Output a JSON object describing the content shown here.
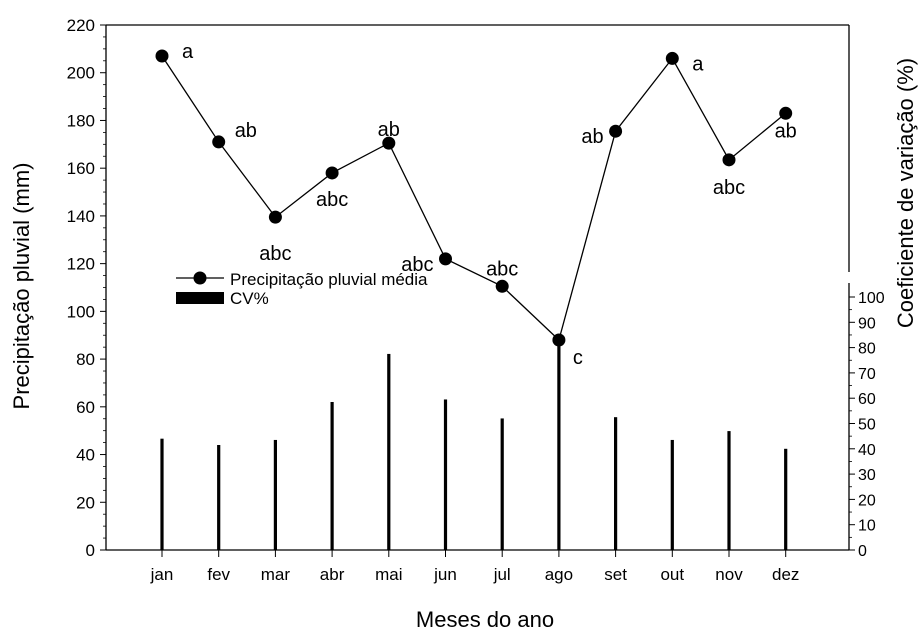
{
  "chart_data": {
    "type": "line",
    "categories": [
      "jan",
      "fev",
      "mar",
      "abr",
      "mai",
      "jun",
      "jul",
      "ago",
      "set",
      "out",
      "nov",
      "dez"
    ],
    "xlabel": "Meses do ano",
    "ylabel": "Precipitação pluvial (mm)",
    "y2label": "Coeficiente de variação (%)",
    "ylim": [
      0,
      220
    ],
    "yticks": [
      0,
      20,
      40,
      60,
      80,
      100,
      120,
      140,
      160,
      180,
      200,
      220
    ],
    "y2lim": [
      0,
      100
    ],
    "y2ticks": [
      0,
      10,
      20,
      30,
      40,
      50,
      60,
      70,
      80,
      90,
      100
    ],
    "series": [
      {
        "name": "Precipitação pluvial média",
        "kind": "line-marker",
        "axis": "left",
        "values": [
          207,
          171,
          139.5,
          158,
          170.5,
          122,
          110.5,
          88,
          175.5,
          206,
          163.5,
          183
        ],
        "labels": [
          "a",
          "ab",
          "abc",
          "abc",
          "ab",
          "abc",
          "abc",
          "c",
          "ab",
          "a",
          "abc",
          "ab"
        ]
      },
      {
        "name": "CV%",
        "kind": "bar",
        "axis": "right",
        "values": [
          44,
          41.5,
          43.5,
          58.5,
          77.5,
          59.5,
          52,
          84,
          52.5,
          43.5,
          47,
          40
        ]
      }
    ],
    "legend": "upper-left",
    "grid": false,
    "colors": {
      "line": "#000000",
      "bars": "#000000"
    }
  }
}
